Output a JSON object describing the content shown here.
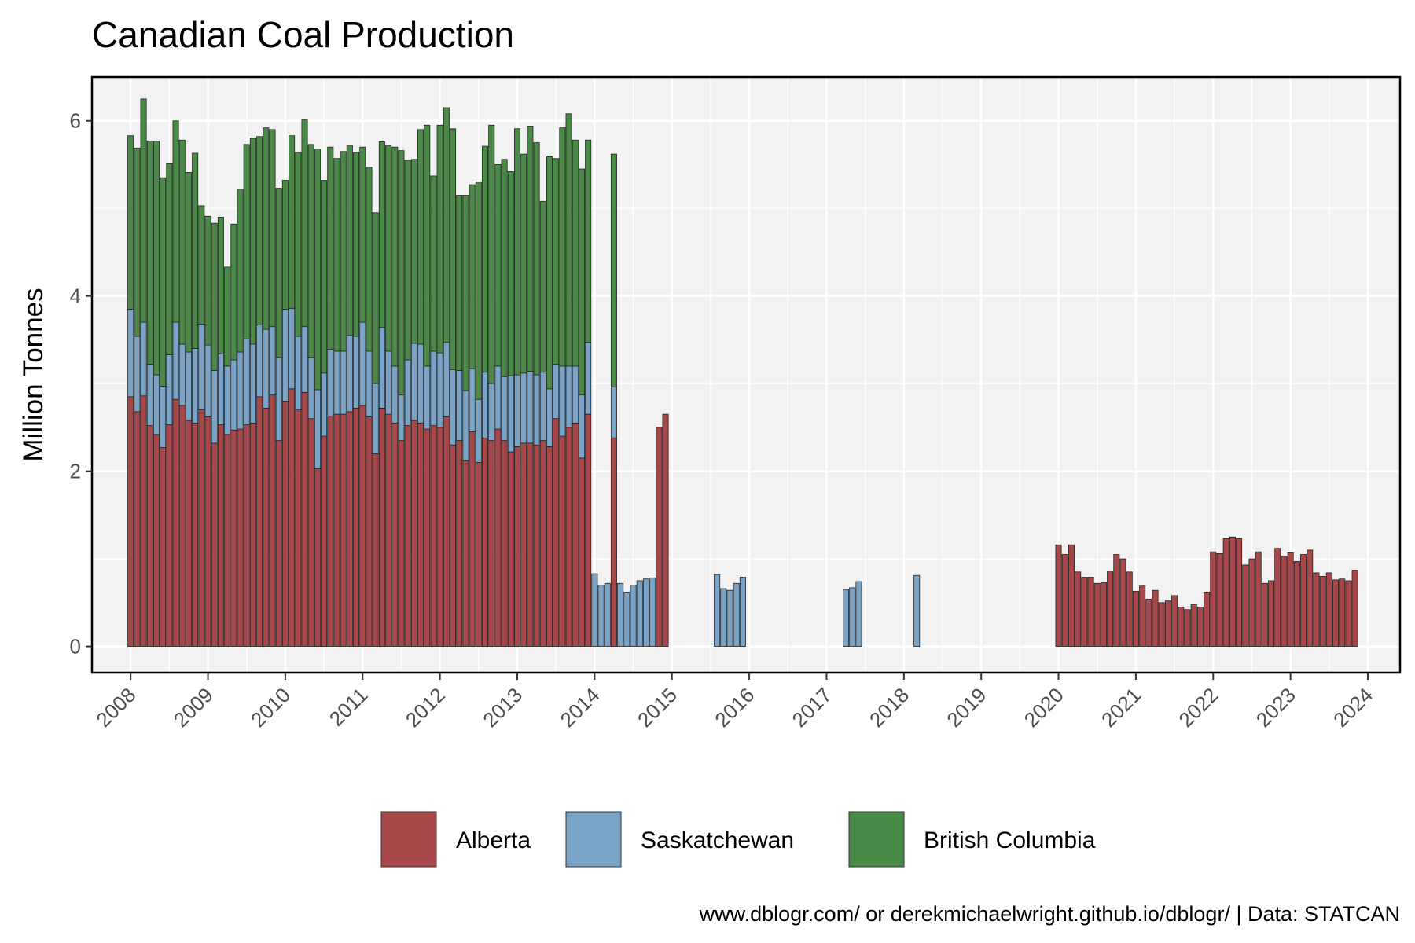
{
  "chart_data": {
    "type": "bar",
    "stacked": true,
    "title": "Canadian Coal Production",
    "xlabel": "",
    "ylabel": "Million Tonnes",
    "caption": "www.dblogr.com/ or derekmichaelwright.github.io/dblogr/ | Data: STATCAN",
    "xlim": [
      "2007-07",
      "2024-06"
    ],
    "ylim": [
      -0.3,
      6.5
    ],
    "y_ticks": [
      0,
      2,
      4,
      6
    ],
    "x_ticks": [
      "2008",
      "2009",
      "2010",
      "2011",
      "2012",
      "2013",
      "2014",
      "2015",
      "2016",
      "2017",
      "2018",
      "2019",
      "2020",
      "2021",
      "2022",
      "2023",
      "2024"
    ],
    "grid": true,
    "legend_position": "bottom",
    "colors": {
      "Alberta": "#a8474a",
      "Saskatchewan": "#79a4c8",
      "British Columbia": "#4a8a47",
      "panel_background": "#f2f2f2",
      "gridline": "#ffffff",
      "bar_outline": "#222222"
    },
    "series": [
      {
        "name": "Alberta",
        "points": [
          [
            "2008-01",
            2.85
          ],
          [
            "2008-02",
            2.68
          ],
          [
            "2008-03",
            2.86
          ],
          [
            "2008-04",
            2.52
          ],
          [
            "2008-05",
            2.42
          ],
          [
            "2008-06",
            2.27
          ],
          [
            "2008-07",
            2.53
          ],
          [
            "2008-08",
            2.82
          ],
          [
            "2008-09",
            2.75
          ],
          [
            "2008-10",
            2.58
          ],
          [
            "2008-11",
            2.55
          ],
          [
            "2008-12",
            2.7
          ],
          [
            "2009-01",
            2.62
          ],
          [
            "2009-02",
            2.32
          ],
          [
            "2009-03",
            2.53
          ],
          [
            "2009-04",
            2.42
          ],
          [
            "2009-05",
            2.47
          ],
          [
            "2009-06",
            2.48
          ],
          [
            "2009-07",
            2.53
          ],
          [
            "2009-08",
            2.55
          ],
          [
            "2009-09",
            2.85
          ],
          [
            "2009-10",
            2.72
          ],
          [
            "2009-11",
            2.87
          ],
          [
            "2009-12",
            2.35
          ],
          [
            "2010-01",
            2.8
          ],
          [
            "2010-02",
            2.94
          ],
          [
            "2010-03",
            2.7
          ],
          [
            "2010-04",
            2.9
          ],
          [
            "2010-05",
            2.6
          ],
          [
            "2010-06",
            2.03
          ],
          [
            "2010-07",
            2.4
          ],
          [
            "2010-08",
            2.63
          ],
          [
            "2010-09",
            2.65
          ],
          [
            "2010-10",
            2.65
          ],
          [
            "2010-11",
            2.68
          ],
          [
            "2010-12",
            2.72
          ],
          [
            "2011-01",
            2.75
          ],
          [
            "2011-02",
            2.62
          ],
          [
            "2011-03",
            2.2
          ],
          [
            "2011-04",
            2.72
          ],
          [
            "2011-05",
            2.65
          ],
          [
            "2011-06",
            2.55
          ],
          [
            "2011-07",
            2.35
          ],
          [
            "2011-08",
            2.52
          ],
          [
            "2011-09",
            2.58
          ],
          [
            "2011-10",
            2.55
          ],
          [
            "2011-11",
            2.48
          ],
          [
            "2011-12",
            2.52
          ],
          [
            "2012-01",
            2.5
          ],
          [
            "2012-02",
            2.62
          ],
          [
            "2012-03",
            2.3
          ],
          [
            "2012-04",
            2.35
          ],
          [
            "2012-05",
            2.12
          ],
          [
            "2012-06",
            2.45
          ],
          [
            "2012-07",
            2.1
          ],
          [
            "2012-08",
            2.38
          ],
          [
            "2012-09",
            2.35
          ],
          [
            "2012-10",
            2.48
          ],
          [
            "2012-11",
            2.35
          ],
          [
            "2012-12",
            2.22
          ],
          [
            "2013-01",
            2.28
          ],
          [
            "2013-02",
            2.32
          ],
          [
            "2013-03",
            2.32
          ],
          [
            "2013-04",
            2.3
          ],
          [
            "2013-05",
            2.35
          ],
          [
            "2013-06",
            2.28
          ],
          [
            "2013-07",
            2.6
          ],
          [
            "2013-08",
            2.4
          ],
          [
            "2013-09",
            2.5
          ],
          [
            "2013-10",
            2.55
          ],
          [
            "2013-11",
            2.15
          ],
          [
            "2013-12",
            2.65
          ],
          [
            "2014-04",
            2.38
          ],
          [
            "2014-11",
            2.5
          ],
          [
            "2014-12",
            2.65
          ],
          [
            "2020-01",
            1.16
          ],
          [
            "2020-02",
            1.05
          ],
          [
            "2020-03",
            1.16
          ],
          [
            "2020-04",
            0.85
          ],
          [
            "2020-05",
            0.79
          ],
          [
            "2020-06",
            0.79
          ],
          [
            "2020-07",
            0.72
          ],
          [
            "2020-08",
            0.73
          ],
          [
            "2020-09",
            0.86
          ],
          [
            "2020-10",
            1.05
          ],
          [
            "2020-11",
            1.0
          ],
          [
            "2020-12",
            0.85
          ],
          [
            "2021-01",
            0.63
          ],
          [
            "2021-02",
            0.69
          ],
          [
            "2021-03",
            0.54
          ],
          [
            "2021-04",
            0.64
          ],
          [
            "2021-05",
            0.5
          ],
          [
            "2021-06",
            0.52
          ],
          [
            "2021-07",
            0.58
          ],
          [
            "2021-08",
            0.45
          ],
          [
            "2021-09",
            0.42
          ],
          [
            "2021-10",
            0.48
          ],
          [
            "2021-11",
            0.45
          ],
          [
            "2021-12",
            0.62
          ],
          [
            "2022-01",
            1.08
          ],
          [
            "2022-02",
            1.06
          ],
          [
            "2022-03",
            1.23
          ],
          [
            "2022-04",
            1.25
          ],
          [
            "2022-05",
            1.23
          ],
          [
            "2022-06",
            0.93
          ],
          [
            "2022-07",
            1.0
          ],
          [
            "2022-08",
            1.08
          ],
          [
            "2022-09",
            0.72
          ],
          [
            "2022-10",
            0.75
          ],
          [
            "2022-11",
            1.12
          ],
          [
            "2022-12",
            1.03
          ],
          [
            "2023-01",
            1.07
          ],
          [
            "2023-02",
            0.97
          ],
          [
            "2023-03",
            1.05
          ],
          [
            "2023-04",
            1.1
          ],
          [
            "2023-05",
            0.84
          ],
          [
            "2023-06",
            0.8
          ],
          [
            "2023-07",
            0.84
          ],
          [
            "2023-08",
            0.76
          ],
          [
            "2023-09",
            0.77
          ],
          [
            "2023-10",
            0.75
          ],
          [
            "2023-11",
            0.87
          ]
        ]
      },
      {
        "name": "Saskatchewan",
        "points": [
          [
            "2008-01",
            1.0
          ],
          [
            "2008-02",
            0.86
          ],
          [
            "2008-03",
            0.84
          ],
          [
            "2008-04",
            0.7
          ],
          [
            "2008-05",
            0.68
          ],
          [
            "2008-06",
            0.7
          ],
          [
            "2008-07",
            0.8
          ],
          [
            "2008-08",
            0.88
          ],
          [
            "2008-09",
            0.7
          ],
          [
            "2008-10",
            0.78
          ],
          [
            "2008-11",
            0.85
          ],
          [
            "2008-12",
            0.98
          ],
          [
            "2009-01",
            0.82
          ],
          [
            "2009-02",
            0.83
          ],
          [
            "2009-03",
            0.81
          ],
          [
            "2009-04",
            0.78
          ],
          [
            "2009-05",
            0.8
          ],
          [
            "2009-06",
            0.88
          ],
          [
            "2009-07",
            0.98
          ],
          [
            "2009-08",
            0.9
          ],
          [
            "2009-09",
            0.82
          ],
          [
            "2009-10",
            0.9
          ],
          [
            "2009-11",
            0.78
          ],
          [
            "2009-12",
            0.95
          ],
          [
            "2010-01",
            1.05
          ],
          [
            "2010-02",
            0.92
          ],
          [
            "2010-03",
            0.84
          ],
          [
            "2010-04",
            0.75
          ],
          [
            "2010-05",
            0.7
          ],
          [
            "2010-06",
            0.9
          ],
          [
            "2010-07",
            0.72
          ],
          [
            "2010-08",
            0.76
          ],
          [
            "2010-09",
            0.72
          ],
          [
            "2010-10",
            0.72
          ],
          [
            "2010-11",
            0.87
          ],
          [
            "2010-12",
            0.82
          ],
          [
            "2011-01",
            0.95
          ],
          [
            "2011-02",
            0.75
          ],
          [
            "2011-03",
            0.8
          ],
          [
            "2011-04",
            0.92
          ],
          [
            "2011-05",
            0.72
          ],
          [
            "2011-06",
            0.65
          ],
          [
            "2011-07",
            0.52
          ],
          [
            "2011-08",
            0.75
          ],
          [
            "2011-09",
            0.88
          ],
          [
            "2011-10",
            0.9
          ],
          [
            "2011-11",
            0.72
          ],
          [
            "2011-12",
            0.85
          ],
          [
            "2012-01",
            0.85
          ],
          [
            "2012-02",
            0.85
          ],
          [
            "2012-03",
            0.86
          ],
          [
            "2012-04",
            0.8
          ],
          [
            "2012-05",
            0.8
          ],
          [
            "2012-06",
            0.72
          ],
          [
            "2012-07",
            0.72
          ],
          [
            "2012-08",
            0.75
          ],
          [
            "2012-09",
            0.65
          ],
          [
            "2012-10",
            0.72
          ],
          [
            "2012-11",
            0.73
          ],
          [
            "2012-12",
            0.87
          ],
          [
            "2013-01",
            0.82
          ],
          [
            "2013-02",
            0.8
          ],
          [
            "2013-03",
            0.82
          ],
          [
            "2013-04",
            0.8
          ],
          [
            "2013-05",
            0.78
          ],
          [
            "2013-06",
            0.66
          ],
          [
            "2013-07",
            0.62
          ],
          [
            "2013-08",
            0.8
          ],
          [
            "2013-09",
            0.7
          ],
          [
            "2013-10",
            0.65
          ],
          [
            "2013-11",
            0.72
          ],
          [
            "2013-12",
            0.82
          ],
          [
            "2014-01",
            0.83
          ],
          [
            "2014-02",
            0.7
          ],
          [
            "2014-03",
            0.72
          ],
          [
            "2014-04",
            0.58
          ],
          [
            "2014-05",
            0.72
          ],
          [
            "2014-06",
            0.62
          ],
          [
            "2014-07",
            0.7
          ],
          [
            "2014-08",
            0.75
          ],
          [
            "2014-09",
            0.77
          ],
          [
            "2014-10",
            0.78
          ],
          [
            "2015-08",
            0.82
          ],
          [
            "2015-09",
            0.66
          ],
          [
            "2015-10",
            0.64
          ],
          [
            "2015-11",
            0.72
          ],
          [
            "2015-12",
            0.79
          ],
          [
            "2017-04",
            0.65
          ],
          [
            "2017-05",
            0.67
          ],
          [
            "2017-06",
            0.74
          ],
          [
            "2018-03",
            0.81
          ]
        ]
      },
      {
        "name": "British Columbia",
        "points": [
          [
            "2008-01",
            1.98
          ],
          [
            "2008-02",
            2.15
          ],
          [
            "2008-03",
            2.55
          ],
          [
            "2008-04",
            2.55
          ],
          [
            "2008-05",
            2.67
          ],
          [
            "2008-06",
            2.38
          ],
          [
            "2008-07",
            2.18
          ],
          [
            "2008-08",
            2.3
          ],
          [
            "2008-09",
            2.33
          ],
          [
            "2008-10",
            2.05
          ],
          [
            "2008-11",
            2.23
          ],
          [
            "2008-12",
            1.35
          ],
          [
            "2009-01",
            1.47
          ],
          [
            "2009-02",
            1.68
          ],
          [
            "2009-03",
            1.56
          ],
          [
            "2009-04",
            1.13
          ],
          [
            "2009-05",
            1.55
          ],
          [
            "2009-06",
            1.86
          ],
          [
            "2009-07",
            2.22
          ],
          [
            "2009-08",
            2.35
          ],
          [
            "2009-09",
            2.15
          ],
          [
            "2009-10",
            2.3
          ],
          [
            "2009-11",
            2.25
          ],
          [
            "2009-12",
            1.93
          ],
          [
            "2010-01",
            1.47
          ],
          [
            "2010-02",
            1.97
          ],
          [
            "2010-03",
            2.1
          ],
          [
            "2010-04",
            2.36
          ],
          [
            "2010-05",
            2.43
          ],
          [
            "2010-06",
            2.75
          ],
          [
            "2010-07",
            2.2
          ],
          [
            "2010-08",
            2.31
          ],
          [
            "2010-09",
            2.2
          ],
          [
            "2010-10",
            2.28
          ],
          [
            "2010-11",
            2.17
          ],
          [
            "2010-12",
            2.1
          ],
          [
            "2011-01",
            2.0
          ],
          [
            "2011-02",
            2.1
          ],
          [
            "2011-03",
            1.95
          ],
          [
            "2011-04",
            2.12
          ],
          [
            "2011-05",
            2.35
          ],
          [
            "2011-06",
            2.5
          ],
          [
            "2011-07",
            2.79
          ],
          [
            "2011-08",
            2.28
          ],
          [
            "2011-09",
            2.1
          ],
          [
            "2011-10",
            2.45
          ],
          [
            "2011-11",
            2.75
          ],
          [
            "2011-12",
            2.0
          ],
          [
            "2012-01",
            2.6
          ],
          [
            "2012-02",
            2.68
          ],
          [
            "2012-03",
            2.75
          ],
          [
            "2012-04",
            2.0
          ],
          [
            "2012-05",
            2.23
          ],
          [
            "2012-06",
            2.1
          ],
          [
            "2012-07",
            2.48
          ],
          [
            "2012-08",
            2.58
          ],
          [
            "2012-09",
            2.95
          ],
          [
            "2012-10",
            2.3
          ],
          [
            "2012-11",
            2.48
          ],
          [
            "2012-12",
            2.33
          ],
          [
            "2013-01",
            2.81
          ],
          [
            "2013-02",
            2.5
          ],
          [
            "2013-03",
            2.8
          ],
          [
            "2013-04",
            2.65
          ],
          [
            "2013-05",
            1.95
          ],
          [
            "2013-06",
            2.65
          ],
          [
            "2013-07",
            2.35
          ],
          [
            "2013-08",
            2.72
          ],
          [
            "2013-09",
            2.88
          ],
          [
            "2013-10",
            2.58
          ],
          [
            "2013-11",
            2.58
          ],
          [
            "2013-12",
            2.31
          ],
          [
            "2014-04",
            2.66
          ]
        ]
      }
    ]
  }
}
